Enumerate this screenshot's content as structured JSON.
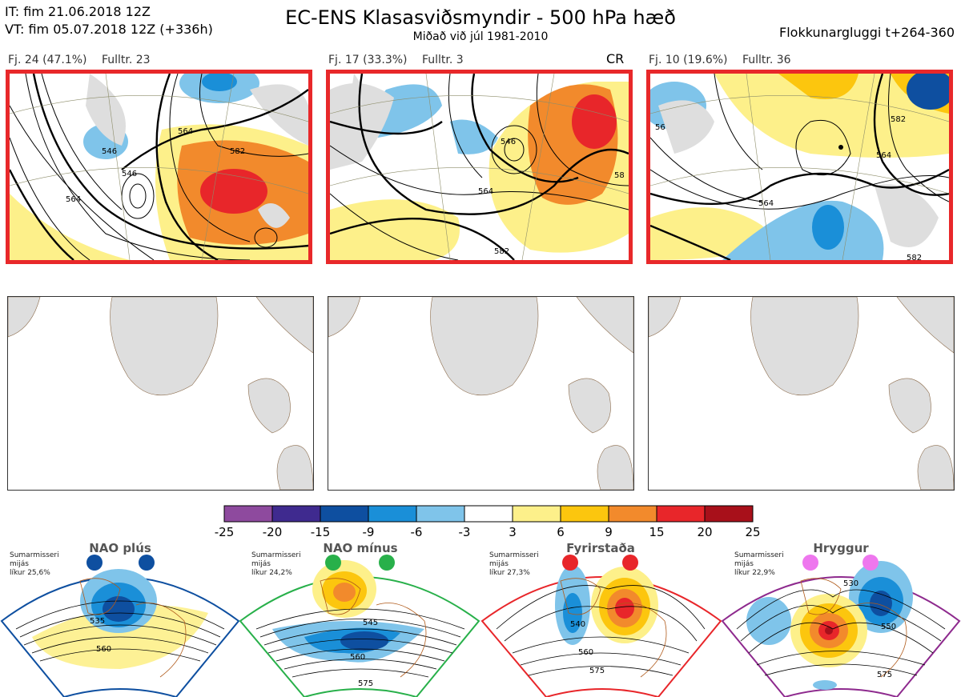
{
  "header": {
    "it_line": "IT: fim 21.06.2018 12Z",
    "vt_line": "VT: fim 05.07.2018 12Z  (+336h)",
    "title": "EC-ENS Klasasviðsmyndir - 500 hPa hæð",
    "subtitle": "Miðað við júl 1981-2010",
    "window": "Flokkunargluggi t+264-360"
  },
  "clusters": [
    {
      "members": "Fj. 24 (47.1%)",
      "rep": "Fulltr. 23",
      "tag": "",
      "contours": [
        "546",
        "564",
        "582",
        "546",
        "564"
      ]
    },
    {
      "members": "Fj. 17 (33.3%)",
      "rep": "Fulltr. 3",
      "tag": "CR",
      "contours": [
        "546",
        "564",
        "582",
        "58"
      ]
    },
    {
      "members": "Fj. 10 (19.6%)",
      "rep": "Fulltr. 36",
      "tag": "",
      "contours": [
        "564",
        "564",
        "582",
        "56",
        "582"
      ]
    }
  ],
  "colorbar": {
    "labels": [
      "-25",
      "-20",
      "-15",
      "-9",
      "-6",
      "-3",
      "3",
      "6",
      "9",
      "15",
      "20",
      "25"
    ],
    "colors": [
      "#8e4a9e",
      "#3f2a8f",
      "#0e4fa0",
      "#1a8fd8",
      "#7fc4ea",
      "#ffffff",
      "#fdf08a",
      "#fcc60e",
      "#f28a2c",
      "#e8262a",
      "#a8101a"
    ]
  },
  "regimes": [
    {
      "name": "NAO plús",
      "season": "Sumarmisseri",
      "stat": "mijás",
      "prob": "líkur 25,6%",
      "dot_color": "#0e4fa0",
      "border": "#0e4fa0",
      "labels": [
        "535",
        "560"
      ]
    },
    {
      "name": "NAO mínus",
      "season": "Sumarmisseri",
      "stat": "mijás",
      "prob": "líkur 24,2%",
      "dot_color": "#28b04a",
      "border": "#28b04a",
      "labels": [
        "545",
        "560",
        "575"
      ]
    },
    {
      "name": "Fyrirstaða",
      "season": "Sumarmisseri",
      "stat": "mijás",
      "prob": "líkur 27,3%",
      "dot_color": "#e8262a",
      "border": "#e8262a",
      "labels": [
        "540",
        "560",
        "575"
      ]
    },
    {
      "name": "Hryggur",
      "season": "Sumarmisseri",
      "stat": "mijás",
      "prob": "líkur 22,9%",
      "dot_color": "#ee77ee",
      "border": "#8e2a8e",
      "labels": [
        "530",
        "550",
        "575"
      ]
    }
  ]
}
